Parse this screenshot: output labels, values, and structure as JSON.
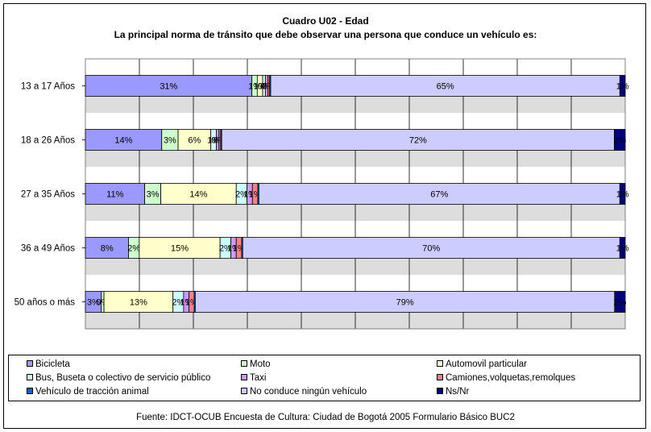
{
  "header": {
    "title": "Cuadro U02 - Edad",
    "subtitle": "La principal norma de tránsito que debe observar una persona que conduce un vehículo es:"
  },
  "source": "Fuente: IDCT-OCUB Encuesta de Cultura: Ciudad de Bogotá 2005 Formulario Básico BUC2",
  "chart_data": {
    "type": "bar",
    "orientation": "horizontal",
    "stacked": "percent",
    "categories": [
      "13 a 17 Años",
      "18 a 26 Años",
      "27 a 35 Años",
      "36 a 49 Años",
      "50 años o más"
    ],
    "xlim": [
      0,
      100
    ],
    "grid": true,
    "legend_position": "bottom",
    "series": [
      {
        "name": "Bicicleta",
        "color": "#9999FF",
        "values": [
          31,
          14,
          11,
          8,
          3
        ],
        "labels": [
          "31%",
          "14%",
          "11%",
          "8%",
          "3%"
        ]
      },
      {
        "name": "Moto",
        "color": "#CCFFCC",
        "values": [
          1,
          3,
          3,
          2,
          0.5
        ],
        "labels": [
          "1%",
          "3%",
          "3%",
          "2%",
          "0%"
        ]
      },
      {
        "name": "Automovil particular",
        "color": "#FFFFCC",
        "values": [
          1,
          6,
          14,
          15,
          13
        ],
        "labels": [
          "1%",
          "6%",
          "14%",
          "15%",
          "13%"
        ]
      },
      {
        "name": "Bus, Buseta o colectivo de servicio público",
        "color": "#CCFFFF",
        "values": [
          0.5,
          1,
          2,
          2,
          2
        ],
        "labels": [
          "0%",
          "1%",
          "2%",
          "2%",
          "2%"
        ]
      },
      {
        "name": "Taxi",
        "color": "#CC99FF",
        "values": [
          0.5,
          0.5,
          1,
          1,
          1
        ],
        "labels": [
          "0%",
          "0%",
          "1%",
          "1%",
          "1%"
        ]
      },
      {
        "name": "Camiones,volquetas,remolques",
        "color": "#FF8080",
        "values": [
          0.3,
          0.3,
          1,
          1,
          1
        ],
        "labels": [
          "0%",
          "0%",
          "1%",
          "1%",
          "1%"
        ]
      },
      {
        "name": "Vehículo de tracción animal",
        "color": "#0066CC",
        "values": [
          0.2,
          0.2,
          0.2,
          0.2,
          0.2
        ],
        "labels": [
          "",
          "",
          "",
          "",
          ""
        ]
      },
      {
        "name": "No conduce ningún vehículo",
        "color": "#CCCCFF",
        "values": [
          65,
          72,
          67,
          70,
          79
        ],
        "labels": [
          "65%",
          "72%",
          "67%",
          "70%",
          "79%"
        ]
      },
      {
        "name": "Ns/Nr",
        "color": "#000080",
        "values": [
          1,
          2,
          1,
          1,
          2
        ],
        "labels": [
          "1%",
          "2%",
          "1%",
          "1%",
          "2%"
        ]
      }
    ]
  }
}
